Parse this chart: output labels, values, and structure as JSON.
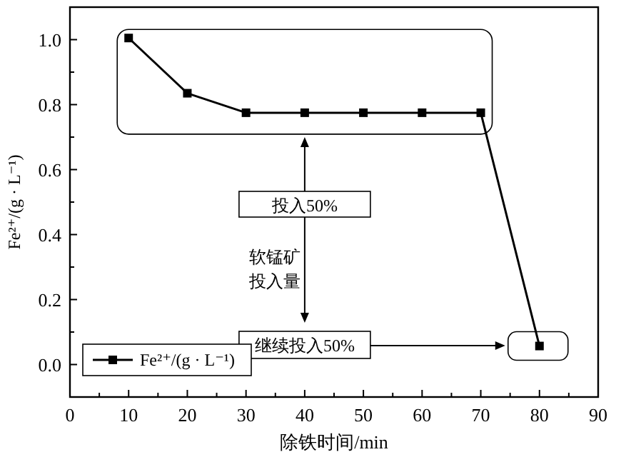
{
  "chart_data": {
    "type": "line",
    "xlabel": "除铁时间/min",
    "ylabel": "Fe²⁺/(g · L⁻¹)",
    "x": [
      10,
      20,
      30,
      40,
      50,
      60,
      70,
      80
    ],
    "series": [
      {
        "name": "Fe²⁺/(g · L⁻¹)",
        "color": "#000000",
        "values": [
          1.005,
          0.835,
          0.775,
          0.775,
          0.775,
          0.775,
          0.775,
          0.057
        ]
      }
    ],
    "xlim": [
      0,
      90
    ],
    "xticks": [
      0,
      {
        "value": 5,
        "label": null
      },
      10,
      {
        "value": 15,
        "label": null
      },
      20,
      {
        "value": 25,
        "label": null
      },
      30,
      {
        "value": 35,
        "label": null
      },
      40,
      {
        "value": 45,
        "label": null
      },
      50,
      {
        "value": 55,
        "label": null
      },
      60,
      {
        "value": 65,
        "label": null
      },
      70,
      {
        "value": 75,
        "label": null
      },
      80,
      {
        "value": 85,
        "label": null
      },
      90
    ],
    "ylim": [
      -0.1,
      1.1
    ],
    "yticks": [
      {
        "value": -0.1,
        "label": null
      },
      {
        "value": 0,
        "label": "0.0"
      },
      {
        "value": 0.1,
        "label": null
      },
      0.2,
      {
        "value": 0.3,
        "label": null
      },
      0.4,
      {
        "value": 0.5,
        "label": null
      },
      0.6,
      {
        "value": 0.7,
        "label": null
      },
      0.8,
      {
        "value": 0.9,
        "label": null
      },
      {
        "value": 1,
        "label": "1.0"
      },
      {
        "value": 1.1,
        "label": null
      }
    ],
    "annotations": [
      "投入50%",
      "软锰矿",
      "投入量",
      "继续投入50%"
    ],
    "marker": "square",
    "line_style": "solid",
    "legend": "bottom left",
    "grid": false
  }
}
